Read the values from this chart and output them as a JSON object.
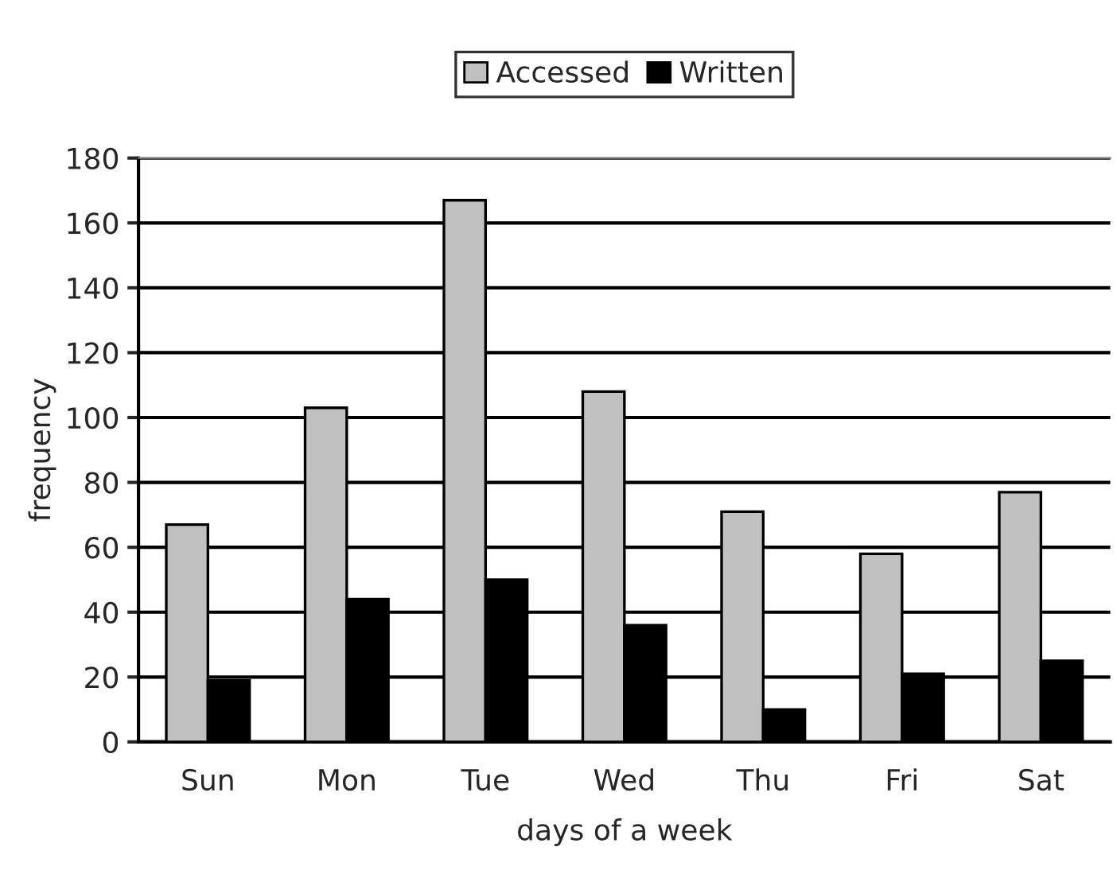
{
  "chart_data": {
    "type": "bar",
    "xlabel": "days of a week",
    "ylabel": "frequency",
    "categories": [
      "Sun",
      "Mon",
      "Tue",
      "Wed",
      "Thu",
      "Fri",
      "Sat"
    ],
    "series": [
      {
        "name": "Accessed",
        "color": "#c0c0c0",
        "values": [
          67,
          103,
          167,
          108,
          71,
          58,
          77
        ]
      },
      {
        "name": "Written",
        "color": "#000000",
        "values": [
          19,
          44,
          50,
          36,
          10,
          21,
          25
        ]
      }
    ],
    "ylim": [
      0,
      180
    ],
    "yticks": [
      0,
      20,
      40,
      60,
      80,
      100,
      120,
      140,
      160,
      180
    ],
    "grid": "y",
    "legend": "top"
  }
}
